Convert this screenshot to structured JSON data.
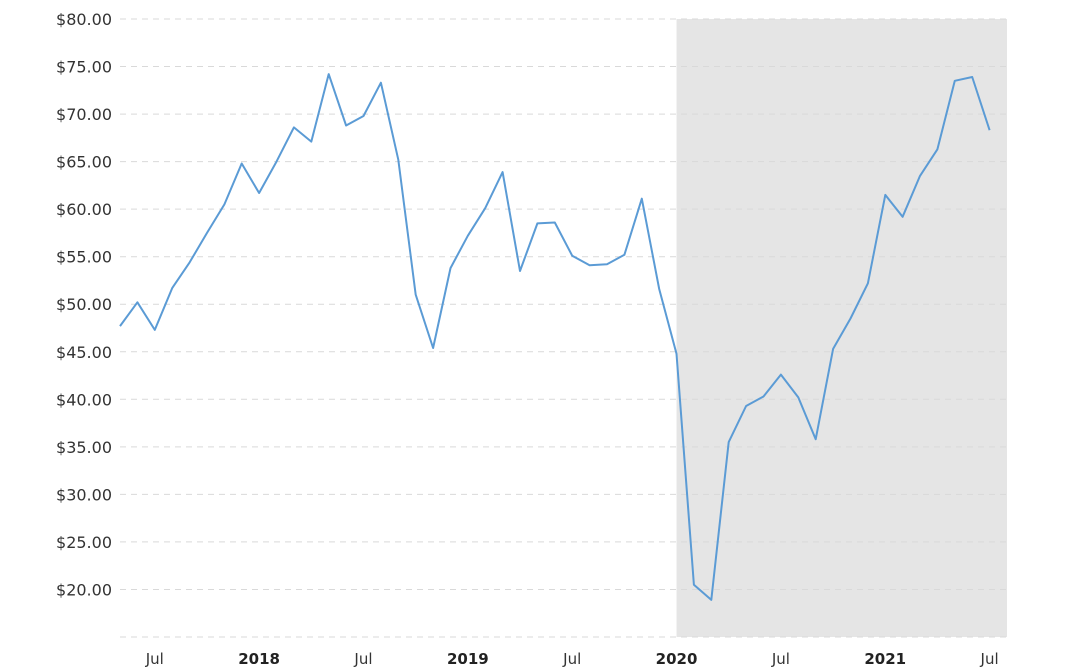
{
  "chart_data": {
    "type": "line",
    "title": "",
    "xlabel": "",
    "ylabel": "",
    "ylim": [
      15,
      80
    ],
    "grid": true,
    "x_range": [
      "2017-05-01",
      "2021-08-01"
    ],
    "y_tick_labels": [
      "$20.00",
      "$25.00",
      "$30.00",
      "$35.00",
      "$40.00",
      "$45.00",
      "$50.00",
      "$55.00",
      "$60.00",
      "$65.00",
      "$70.00",
      "$75.00",
      "$80.00"
    ],
    "y_tick_values": [
      20,
      25,
      30,
      35,
      40,
      45,
      50,
      55,
      60,
      65,
      70,
      75,
      80
    ],
    "x_ticks": [
      {
        "label": "Jul",
        "date": "2017-07-01",
        "bold": false
      },
      {
        "label": "2018",
        "date": "2018-01-01",
        "bold": true
      },
      {
        "label": "Jul",
        "date": "2018-07-01",
        "bold": false
      },
      {
        "label": "2019",
        "date": "2019-01-01",
        "bold": true
      },
      {
        "label": "Jul",
        "date": "2019-07-01",
        "bold": false
      },
      {
        "label": "2020",
        "date": "2020-01-01",
        "bold": true
      },
      {
        "label": "Jul",
        "date": "2020-07-01",
        "bold": false
      },
      {
        "label": "2021",
        "date": "2021-01-01",
        "bold": true
      },
      {
        "label": "Jul",
        "date": "2021-07-01",
        "bold": false
      }
    ],
    "shaded_region": {
      "start": "2020-01-01",
      "end": "2021-08-01",
      "color": "#e5e5e5"
    },
    "series": [
      {
        "color": "#5b9bd5",
        "points": [
          [
            "2017-05-01",
            47.7
          ],
          [
            "2017-06-01",
            50.2
          ],
          [
            "2017-07-01",
            47.3
          ],
          [
            "2017-08-01",
            51.7
          ],
          [
            "2017-09-01",
            54.4
          ],
          [
            "2017-10-01",
            57.5
          ],
          [
            "2017-11-01",
            60.5
          ],
          [
            "2017-12-01",
            64.8
          ],
          [
            "2018-01-01",
            61.7
          ],
          [
            "2018-02-01",
            65.0
          ],
          [
            "2018-03-01",
            68.6
          ],
          [
            "2018-04-01",
            67.1
          ],
          [
            "2018-05-01",
            74.2
          ],
          [
            "2018-06-01",
            68.8
          ],
          [
            "2018-07-01",
            69.8
          ],
          [
            "2018-08-01",
            73.3
          ],
          [
            "2018-09-01",
            65.2
          ],
          [
            "2018-10-01",
            51.0
          ],
          [
            "2018-11-01",
            45.4
          ],
          [
            "2018-12-01",
            53.8
          ],
          [
            "2019-01-01",
            57.2
          ],
          [
            "2019-02-01",
            60.1
          ],
          [
            "2019-03-01",
            63.9
          ],
          [
            "2019-04-01",
            53.5
          ],
          [
            "2019-05-01",
            58.5
          ],
          [
            "2019-06-01",
            58.6
          ],
          [
            "2019-07-01",
            55.1
          ],
          [
            "2019-08-01",
            54.1
          ],
          [
            "2019-09-01",
            54.2
          ],
          [
            "2019-10-01",
            55.2
          ],
          [
            "2019-11-01",
            61.1
          ],
          [
            "2019-12-01",
            51.6
          ],
          [
            "2020-01-01",
            44.8
          ],
          [
            "2020-02-01",
            20.5
          ],
          [
            "2020-03-01",
            18.9
          ],
          [
            "2020-04-01",
            35.5
          ],
          [
            "2020-05-01",
            39.3
          ],
          [
            "2020-06-01",
            40.3
          ],
          [
            "2020-07-01",
            42.6
          ],
          [
            "2020-08-01",
            40.2
          ],
          [
            "2020-09-01",
            35.8
          ],
          [
            "2020-10-01",
            45.3
          ],
          [
            "2020-11-01",
            48.5
          ],
          [
            "2020-12-01",
            52.2
          ],
          [
            "2021-01-01",
            61.5
          ],
          [
            "2021-02-01",
            59.2
          ],
          [
            "2021-03-01",
            63.5
          ],
          [
            "2021-04-01",
            66.3
          ],
          [
            "2021-05-01",
            73.5
          ],
          [
            "2021-06-01",
            73.9
          ],
          [
            "2021-07-01",
            68.3
          ]
        ]
      }
    ]
  }
}
